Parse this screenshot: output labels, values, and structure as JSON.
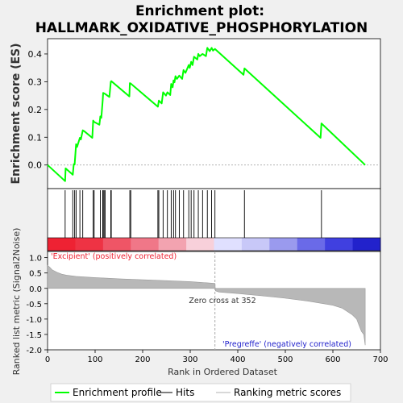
{
  "chart_data": [
    {
      "type": "line",
      "title_line1": "Enrichment plot:",
      "title_line2": "HALLMARK_OXIDATIVE_PHOSPHORYLATION",
      "ylabel": "Enrichment score (ES)",
      "xlim": [
        0,
        700
      ],
      "ylim": [
        -0.085,
        0.455
      ],
      "yticks": [
        "0.0",
        "0.1",
        "0.2",
        "0.3",
        "0.4"
      ],
      "ytick_values": [
        0.0,
        0.1,
        0.2,
        0.3,
        0.4
      ],
      "line_color": "#00ff00",
      "series": [
        {
          "name": "Enrichment profile",
          "x": [
            0,
            37,
            38,
            53,
            55,
            57,
            60,
            62,
            68,
            70,
            74,
            77,
            94,
            96,
            98,
            109,
            111,
            113,
            116,
            117,
            119,
            121,
            130,
            133,
            134,
            172,
            173,
            175,
            232,
            234,
            240,
            243,
            249,
            252,
            258,
            260,
            263,
            265,
            267,
            269,
            272,
            277,
            283,
            286,
            290,
            297,
            299,
            302,
            305,
            308,
            315,
            317,
            320,
            326,
            333,
            336,
            341,
            345,
            348,
            352,
            412,
            414,
            574,
            576,
            668
          ],
          "y": [
            0.0,
            -0.058,
            -0.012,
            -0.035,
            0.003,
            0.002,
            0.075,
            0.065,
            0.098,
            0.092,
            0.125,
            0.122,
            0.098,
            0.16,
            0.155,
            0.145,
            0.175,
            0.17,
            0.232,
            0.26,
            0.258,
            0.256,
            0.245,
            0.3,
            0.302,
            0.247,
            0.295,
            0.293,
            0.21,
            0.232,
            0.222,
            0.262,
            0.25,
            0.262,
            0.252,
            0.292,
            0.28,
            0.305,
            0.298,
            0.32,
            0.31,
            0.322,
            0.31,
            0.342,
            0.332,
            0.36,
            0.35,
            0.372,
            0.36,
            0.39,
            0.38,
            0.4,
            0.392,
            0.4,
            0.392,
            0.422,
            0.41,
            0.422,
            0.412,
            0.418,
            0.325,
            0.348,
            0.098,
            0.15,
            0.0
          ]
        }
      ],
      "legend": {
        "position": "bottom",
        "items": [
          {
            "label": "Enrichment profile",
            "color": "#00ff00"
          },
          {
            "label": "Hits",
            "color": "#000000"
          },
          {
            "label": "Ranking metric scores",
            "color": "#b0b0b0"
          }
        ]
      }
    },
    {
      "type": "hits",
      "xlim": [
        0,
        700
      ],
      "hit_ranks": [
        37,
        53,
        57,
        60,
        68,
        74,
        96,
        98,
        111,
        116,
        117,
        119,
        121,
        133,
        134,
        173,
        175,
        232,
        234,
        243,
        252,
        260,
        265,
        269,
        277,
        286,
        297,
        302,
        308,
        317,
        326,
        336,
        345,
        352,
        414,
        576
      ],
      "heatmap_colors": [
        "#ee2233",
        "#ee3344",
        "#ef5566",
        "#f07788",
        "#f3a3b0",
        "#f8d0da",
        "#e0e0ff",
        "#c8c8f8",
        "#9a9aee",
        "#6a6ae8",
        "#4040e0",
        "#2222cc"
      ]
    },
    {
      "type": "area",
      "ylabel": "Ranked list metric (Signal2Noise)",
      "xlabel": "Rank in Ordered Dataset",
      "xlim": [
        0,
        700
      ],
      "ylim": [
        -2.0,
        1.2
      ],
      "yticks": [
        "1.0",
        "0.5",
        "0.0",
        "-0.5",
        "-1.0",
        "-1.5",
        "-2.0"
      ],
      "ytick_values": [
        1.0,
        0.5,
        0.0,
        -0.5,
        -1.0,
        -1.5,
        -2.0
      ],
      "xticks": [
        "0",
        "100",
        "200",
        "300",
        "400",
        "500",
        "600",
        "700"
      ],
      "xtick_values": [
        0,
        100,
        200,
        300,
        400,
        500,
        600,
        700
      ],
      "x": [
        0,
        5,
        10,
        20,
        30,
        40,
        60,
        100,
        150,
        200,
        250,
        300,
        345,
        352,
        353,
        360,
        400,
        450,
        500,
        550,
        600,
        620,
        640,
        650,
        655,
        660,
        665,
        668
      ],
      "y": [
        0.75,
        0.68,
        0.6,
        0.52,
        0.46,
        0.43,
        0.39,
        0.35,
        0.31,
        0.28,
        0.25,
        0.22,
        0.17,
        0.16,
        -0.08,
        -0.12,
        -0.17,
        -0.24,
        -0.32,
        -0.42,
        -0.55,
        -0.65,
        -0.85,
        -1.0,
        -1.2,
        -1.4,
        -1.5,
        -1.85
      ],
      "zero_cross": 352,
      "annotation_zero": "Zero cross at 352",
      "label_pos": "'Excipient' (positively correlated)",
      "label_neg": "'Pregreffe' (negatively correlated)",
      "label_pos_color": "#ee2233",
      "label_neg_color": "#2222cc",
      "fill_color": "#b8b8b8"
    }
  ]
}
